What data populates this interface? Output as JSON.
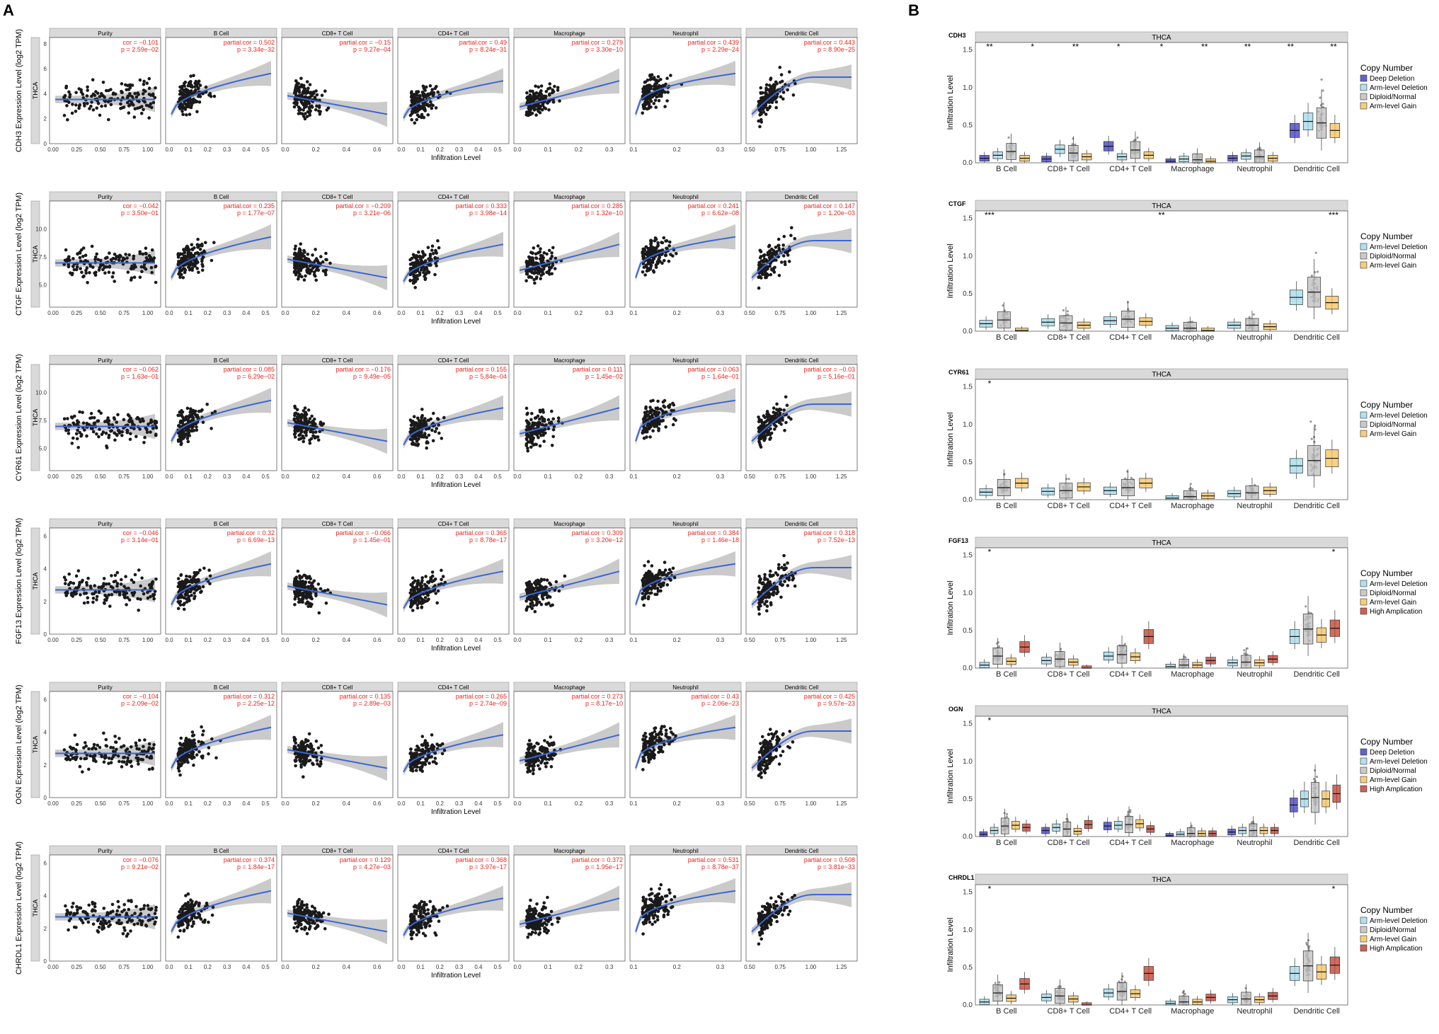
{
  "panel_labels": [
    "A",
    "B"
  ],
  "colors": {
    "point": "#1a1a1a",
    "smooth": "#3a66d6",
    "band": "#bdbdbd",
    "stat_text": "#e8261e",
    "strip_fill": "#d9d9d9",
    "jitter": "#9a9a9a",
    "deep_deletion": "#3b3bbf",
    "arm_deletion": "#9fd8e8",
    "diploid": "#bdbdbd",
    "arm_gain": "#f5c15c",
    "high_amp": "#c0392b"
  },
  "chart_data": [
    {
      "type": "scatter",
      "panel": "A",
      "facet_titles": [
        "Purity",
        "B Cell",
        "CD8+ T Cell",
        "CD4+ T Cell",
        "Macrophage",
        "Neutrophil",
        "Dendritic Cell"
      ],
      "xlabel": "Infiltration Level",
      "strip_label": "THCA",
      "facet_x_ticks": [
        [
          "0.00",
          "0.25",
          "0.50",
          "0.75",
          "1.00"
        ],
        [
          "0.0",
          "0.1",
          "0.2",
          "0.3",
          "0.4",
          "0.5"
        ],
        [
          "0.0",
          "0.2",
          "0.4",
          "0.6"
        ],
        [
          "0.0",
          "0.1",
          "0.2",
          "0.3",
          "0.4",
          "0.5"
        ],
        [
          "0.0",
          "0.1",
          "0.2",
          "0.3"
        ],
        [
          "0.1",
          "0.2",
          "0.3"
        ],
        [
          "0.50",
          "0.75",
          "1.00",
          "1.25"
        ]
      ],
      "rows": [
        {
          "gene": "CDH3",
          "ylabel": "CDH3 Expression Level (log2 TPM)",
          "yticks": [
            "0",
            "2",
            "4",
            "6",
            "8"
          ],
          "ymin": 0,
          "ymax": 8.5,
          "stats": [
            [
              "cor = −0.101",
              "p = 2.59e−02"
            ],
            [
              "partial.cor = 0.502",
              "p = 3.34e−32"
            ],
            [
              "partial.cor = −0.15",
              "p = 9.27e−04"
            ],
            [
              "partial.cor = 0.49",
              "p = 8.24e−31"
            ],
            [
              "partial.cor = 0.279",
              "p = 3.30e−10"
            ],
            [
              "partial.cor = 0.439",
              "p = 2.29e−24"
            ],
            [
              "partial.cor = 0.443",
              "p = 8.90e−25"
            ]
          ]
        },
        {
          "gene": "CTGF",
          "ylabel": "CTGF Expression Level (log2 TPM)",
          "yticks": [
            "5.0",
            "7.5",
            "10.0"
          ],
          "ymin": 3,
          "ymax": 12.5,
          "stats": [
            [
              "cor = −0.042",
              "p = 3.50e−01"
            ],
            [
              "partial.cor = 0.235",
              "p = 1.77e−07"
            ],
            [
              "partial.cor = −0.209",
              "p = 3.21e−06"
            ],
            [
              "partial.cor = 0.333",
              "p = 3.98e−14"
            ],
            [
              "partial.cor = 0.285",
              "p = 1.32e−10"
            ],
            [
              "partial.cor = 0.241",
              "p = 6.62e−08"
            ],
            [
              "partial.cor = 0.147",
              "p = 1.20e−03"
            ]
          ]
        },
        {
          "gene": "CYR61",
          "ylabel": "CYR61 Expression Level (log2 TPM)",
          "yticks": [
            "5.0",
            "7.5",
            "10.0"
          ],
          "ymin": 3,
          "ymax": 12.5,
          "stats": [
            [
              "cor = −0.062",
              "p = 1.63e−01"
            ],
            [
              "partial.cor = 0.085",
              "p = 6.29e−02"
            ],
            [
              "partial.cor = −0.176",
              "p = 9.49e−05"
            ],
            [
              "partial.cor = 0.155",
              "p = 5.84e−04"
            ],
            [
              "partial.cor = 0.111",
              "p = 1.45e−02"
            ],
            [
              "partial.cor = 0.063",
              "p = 1.64e−01"
            ],
            [
              "partial.cor = −0.03",
              "p = 5.16e−01"
            ]
          ]
        },
        {
          "gene": "FGF13",
          "ylabel": "FGF13 Expression Level (log2 TPM)",
          "yticks": [
            "0",
            "2",
            "4",
            "6"
          ],
          "ymin": 0,
          "ymax": 6.5,
          "stats": [
            [
              "cor = −0.046",
              "p = 3.14e−01"
            ],
            [
              "partial.cor = 0.32",
              "p = 6.69e−13"
            ],
            [
              "partial.cor = −0.066",
              "p = 1.45e−01"
            ],
            [
              "partial.cor = 0.365",
              "p = 8.78e−17"
            ],
            [
              "partial.cor = 0.309",
              "p = 3.20e−12"
            ],
            [
              "partial.cor = 0.384",
              "p = 1.46e−18"
            ],
            [
              "partial.cor = 0.318",
              "p = 7.52e−13"
            ]
          ]
        },
        {
          "gene": "OGN",
          "ylabel": "OGN Expression Level (log2 TPM)",
          "yticks": [
            "0",
            "2",
            "4",
            "6"
          ],
          "ymin": 0,
          "ymax": 6.5,
          "stats": [
            [
              "cor = −0.104",
              "p = 2.09e−02"
            ],
            [
              "partial.cor = 0.312",
              "p = 2.25e−12"
            ],
            [
              "partial.cor = 0.135",
              "p = 2.89e−03"
            ],
            [
              "partial.cor = 0.265",
              "p = 2.74e−09"
            ],
            [
              "partial.cor = 0.273",
              "p = 8.17e−10"
            ],
            [
              "partial.cor = 0.43",
              "p = 2.06e−23"
            ],
            [
              "partial.cor = 0.425",
              "p = 9.57e−23"
            ]
          ]
        },
        {
          "gene": "CHRDL1",
          "ylabel": "CHRDL1 Expression Level (log2 TPM)",
          "yticks": [
            "0",
            "2",
            "4",
            "6"
          ],
          "ymin": 0,
          "ymax": 6.5,
          "stats": [
            [
              "cor = −0.076",
              "p = 9.21e−02"
            ],
            [
              "partial.cor = 0.374",
              "p = 1.84e−17"
            ],
            [
              "partial.cor = 0.129",
              "p = 4.27e−03"
            ],
            [
              "partial.cor = 0.368",
              "p = 3.97e−17"
            ],
            [
              "partial.cor = 0.372",
              "p = 1.95e−17"
            ],
            [
              "partial.cor = 0.531",
              "p = 8.78e−37"
            ],
            [
              "partial.cor = 0.508",
              "p = 3.81e−33"
            ]
          ]
        }
      ]
    },
    {
      "type": "box",
      "panel": "B",
      "strip_label": "THCA",
      "ylabel": "Infiltration Level",
      "yticks": [
        "0.0",
        "0.5",
        "1.0",
        "1.5"
      ],
      "ylim": [
        0,
        1.6
      ],
      "categories": [
        "B Cell",
        "CD8+ T Cell",
        "CD4+ T Cell",
        "Macrophage",
        "Neutrophil",
        "Dendritic Cell"
      ],
      "legend_title": "Copy Number",
      "rows": [
        {
          "gene": "CDH3",
          "legend": [
            "Deep Deletion",
            "Arm-level Deletion",
            "Diploid/Normal",
            "Arm-level Gain"
          ],
          "keys": [
            "dd",
            "ad",
            "dn",
            "ag"
          ],
          "medians": [
            [
              0.06,
              0.1,
              0.15,
              0.06
            ],
            [
              0.05,
              0.18,
              0.13,
              0.08
            ],
            [
              0.22,
              0.08,
              0.17,
              0.1
            ],
            [
              0.02,
              0.05,
              0.04,
              0.02
            ],
            [
              0.06,
              0.09,
              0.08,
              0.06
            ],
            [
              0.43,
              0.55,
              0.53,
              0.43
            ]
          ],
          "stars": [
            "**",
            "*",
            "**",
            "*",
            "*",
            "**",
            "**",
            "**",
            "**"
          ]
        },
        {
          "gene": "CTGF",
          "legend": [
            "Arm-level Deletion",
            "Diploid/Normal",
            "Arm-level Gain"
          ],
          "keys": [
            "ad",
            "dn",
            "ag"
          ],
          "medians": [
            [
              0.1,
              0.15,
              0.01
            ],
            [
              0.12,
              0.11,
              0.08
            ],
            [
              0.14,
              0.16,
              0.13
            ],
            [
              0.04,
              0.04,
              0.01
            ],
            [
              0.08,
              0.08,
              0.06
            ],
            [
              0.45,
              0.52,
              0.38
            ]
          ],
          "stars": [
            "***",
            "**",
            "***"
          ]
        },
        {
          "gene": "CYR61",
          "legend": [
            "Arm-level Deletion",
            "Diploid/Normal",
            "Arm-level Gain"
          ],
          "keys": [
            "ad",
            "dn",
            "ag"
          ],
          "medians": [
            [
              0.1,
              0.16,
              0.22
            ],
            [
              0.11,
              0.12,
              0.17
            ],
            [
              0.12,
              0.16,
              0.22
            ],
            [
              0.02,
              0.04,
              0.05
            ],
            [
              0.08,
              0.09,
              0.12
            ],
            [
              0.45,
              0.52,
              0.55
            ]
          ],
          "stars": [
            "*"
          ]
        },
        {
          "gene": "FGF13",
          "legend": [
            "Arm-level Deletion",
            "Diploid/Normal",
            "Arm-level Gain",
            "High Amplication"
          ],
          "keys": [
            "ad",
            "dn",
            "ag",
            "ha"
          ],
          "medians": [
            [
              0.04,
              0.16,
              0.09,
              0.28
            ],
            [
              0.1,
              0.12,
              0.08,
              0.0
            ],
            [
              0.16,
              0.18,
              0.15,
              0.42
            ],
            [
              0.02,
              0.04,
              0.04,
              0.1
            ],
            [
              0.07,
              0.08,
              0.07,
              0.12
            ],
            [
              0.42,
              0.52,
              0.44,
              0.53
            ]
          ],
          "stars": [
            "*",
            "*"
          ]
        },
        {
          "gene": "OGN",
          "legend": [
            "Deep Deletion",
            "Arm-level Deletion",
            "Diploid/Normal",
            "Arm-level Gain",
            "High Amplication"
          ],
          "keys": [
            "dd",
            "ad",
            "dn",
            "ag",
            "ha"
          ],
          "medians": [
            [
              0.03,
              0.08,
              0.14,
              0.15,
              0.12
            ],
            [
              0.08,
              0.12,
              0.1,
              0.07,
              0.16
            ],
            [
              0.14,
              0.15,
              0.16,
              0.17,
              0.1
            ],
            [
              0.01,
              0.03,
              0.04,
              0.04,
              0.04
            ],
            [
              0.06,
              0.08,
              0.08,
              0.08,
              0.08
            ],
            [
              0.42,
              0.5,
              0.52,
              0.5,
              0.57
            ]
          ],
          "stars": [
            "*"
          ]
        },
        {
          "gene": "CHRDL1",
          "legend": [
            "Arm-level Deletion",
            "Diploid/Normal",
            "Arm-level Gain",
            "High Amplication"
          ],
          "keys": [
            "ad",
            "dn",
            "ag",
            "ha"
          ],
          "medians": [
            [
              0.04,
              0.16,
              0.09,
              0.28
            ],
            [
              0.1,
              0.12,
              0.08,
              0.0
            ],
            [
              0.16,
              0.18,
              0.15,
              0.42
            ],
            [
              0.02,
              0.04,
              0.04,
              0.1
            ],
            [
              0.07,
              0.08,
              0.07,
              0.12
            ],
            [
              0.42,
              0.52,
              0.44,
              0.53
            ]
          ],
          "stars": [
            "*",
            "*"
          ]
        }
      ]
    }
  ]
}
